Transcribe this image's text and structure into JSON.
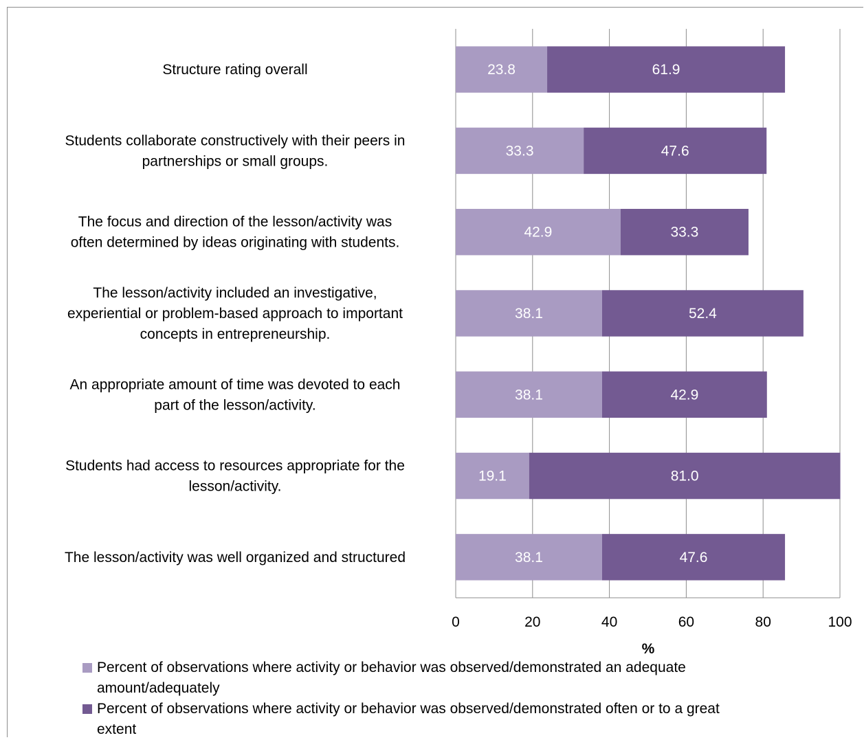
{
  "chart_data": {
    "type": "bar",
    "orientation": "horizontal",
    "stacked": true,
    "categories": [
      "Structure rating overall",
      "Students collaborate constructively with their peers in partnerships or small groups.",
      "The focus and direction of the lesson/activity was often determined by ideas originating with students.",
      "The lesson/activity included an investigative, experiential or problem-based approach to important concepts in entrepreneurship.",
      "An appropriate amount of time was devoted to each part of the lesson/activity.",
      "Students had access to resources appropriate for the lesson/activity.",
      "The lesson/activity was well organized and structured"
    ],
    "category_lines": [
      [
        "Structure rating overall"
      ],
      [
        "Students collaborate constructively with their peers in",
        "partnerships or small groups."
      ],
      [
        "The focus and direction of the lesson/activity was",
        "often determined by ideas originating with students."
      ],
      [
        "The lesson/activity included an investigative,",
        "experiential or problem-based approach to important",
        "concepts in entrepreneurship."
      ],
      [
        "An appropriate amount of time was devoted to each",
        "part of the lesson/activity."
      ],
      [
        "Students had access to resources appropriate for the",
        "lesson/activity."
      ],
      [
        "The lesson/activity was well organized and structured"
      ]
    ],
    "series": [
      {
        "name": "Percent of observations where activity or behavior was observed/demonstrated an adequate amount/adequately",
        "color": "#a99bc2",
        "values": [
          23.8,
          33.3,
          42.9,
          38.1,
          38.1,
          19.1,
          38.1
        ],
        "labels": [
          "23.8",
          "33.3",
          "42.9",
          "38.1",
          "38.1",
          "19.1",
          "38.1"
        ]
      },
      {
        "name": "Percent of observations where activity or behavior was observed/demonstrated often or to a great extent",
        "color": "#735a92",
        "values": [
          61.9,
          47.6,
          33.3,
          52.4,
          42.9,
          81.0,
          47.6
        ],
        "labels": [
          "61.9",
          "47.6",
          "33.3",
          "52.4",
          "42.9",
          "81.0",
          "47.6"
        ]
      }
    ],
    "xlabel": "%",
    "xlim": [
      0,
      100
    ],
    "xticks": [
      0,
      20,
      40,
      60,
      80,
      100
    ],
    "xtick_labels": [
      "0",
      "20",
      "40",
      "60",
      "80",
      "100"
    ],
    "grid": true,
    "legend_position": "bottom",
    "legend_lines": [
      [
        "Percent of observations where activity or behavior was observed/demonstrated an adequate",
        "amount/adequately"
      ],
      [
        "Percent of observations where activity or behavior was observed/demonstrated often or to a great",
        "extent"
      ]
    ]
  }
}
